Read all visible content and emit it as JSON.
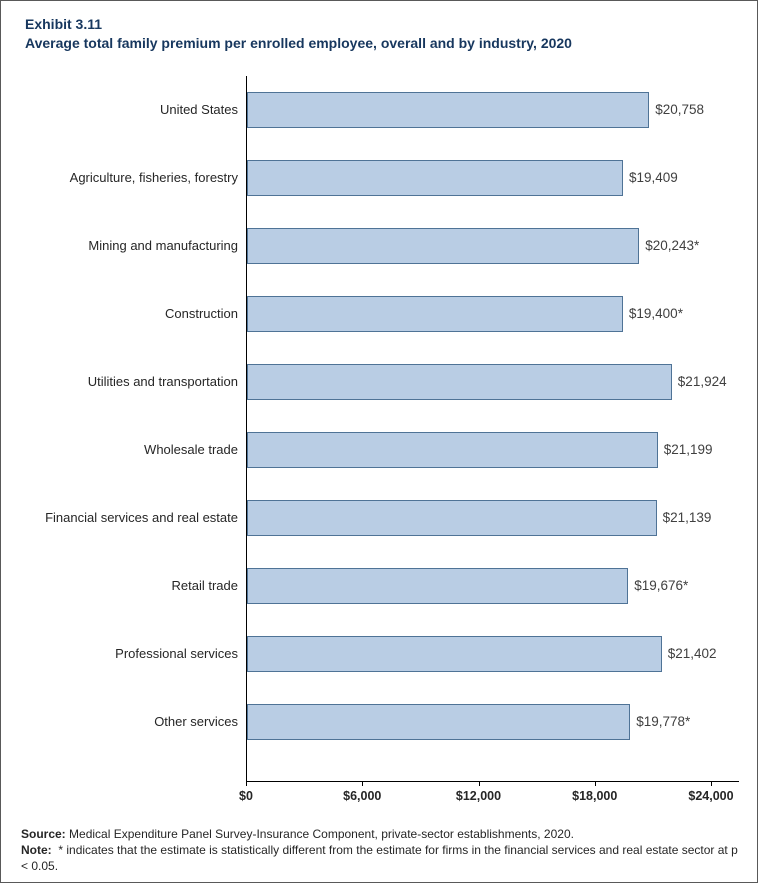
{
  "header": {
    "exhibit": "Exhibit 3.11",
    "title": "Average total family premium per enrolled employee, overall and by industry, 2020"
  },
  "chart_data": {
    "type": "bar",
    "orientation": "horizontal",
    "title": "Average total family premium per enrolled employee, overall and by industry, 2020",
    "categories": [
      "United States",
      "Agriculture, fisheries, forestry",
      "Mining and manufacturing",
      "Construction",
      "Utilities and transportation",
      "Wholesale trade",
      "Financial services and real estate",
      "Retail trade",
      "Professional services",
      "Other services"
    ],
    "values": [
      20758,
      19409,
      20243,
      19400,
      21924,
      21199,
      21139,
      19676,
      21402,
      19778
    ],
    "value_labels": [
      "$20,758",
      "$19,409",
      "$20,243*",
      "$19,400*",
      "$21,924",
      "$21,199",
      "$21,139",
      "$19,676*",
      "$21,402",
      "$19,778*"
    ],
    "x_tick_labels": [
      "$0",
      "$6,000",
      "$12,000",
      "$18,000",
      "$24,000"
    ],
    "xlim": [
      0,
      24000
    ],
    "xlabel": "",
    "ylabel": "",
    "grid": false,
    "legend": false,
    "bar_fill": "#b9cde4",
    "bar_border": "#4f7396"
  },
  "footer": {
    "source_label": "Source:",
    "source_text": "Medical Expenditure Panel Survey-Insurance Component, private-sector establishments, 2020.",
    "note_label": "Note:",
    "note_text": "* indicates that the estimate is statistically different from the estimate for firms in the financial services and real estate sector at p < 0.05."
  }
}
